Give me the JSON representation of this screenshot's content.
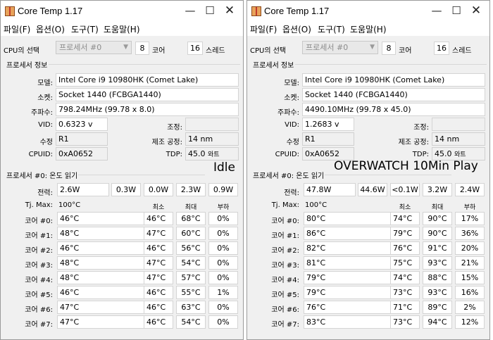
{
  "windows": [
    {
      "title": "Core Temp 1.17",
      "menu": [
        "파일(F)",
        "옵션(O)",
        "도구(T)",
        "도움말(H)"
      ],
      "cpu_select_label": "CPU의 선택",
      "cpu_select_value": "프로세서 #0",
      "cores_count": "8",
      "cores_label": "코어",
      "threads_count": "16",
      "threads_label": "스레드",
      "info_group": "프로세서 정보",
      "model_label": "모델:",
      "model": "Intel Core i9 10980HK (Comet Lake)",
      "socket_label": "소켓:",
      "socket": "Socket 1440 (FCBGA1440)",
      "freq_label": "주파수:",
      "freq": "798.24MHz (99.78 x 8.0)",
      "vid_label": "VID:",
      "vid": "0.6323 v",
      "mod_label": "조정:",
      "rev_label": "수정",
      "rev": "R1",
      "lith_label": "제조 공정:",
      "lith": "14 nm",
      "cpuid_label": "CPUID:",
      "cpuid": "0xA0652",
      "tdp_label": "TDP:",
      "tdp": "45.0",
      "tdp_unit": "와트",
      "temp_group": "프로세서 #0: 온도 읽기",
      "power_label": "전력:",
      "power": [
        "2.6W",
        "0.3W",
        "0.0W",
        "2.3W",
        "0.9W"
      ],
      "tjmax_label": "Tj. Max:",
      "tjmax": "100°C",
      "min_label": "최소",
      "max_label": "최대",
      "load_label": "부하",
      "cores": [
        {
          "label": "코어 #0:",
          "temp": "46°C",
          "min": "46°C",
          "max": "68°C",
          "load": "0%"
        },
        {
          "label": "코어 #1:",
          "temp": "48°C",
          "min": "47°C",
          "max": "60°C",
          "load": "0%"
        },
        {
          "label": "코어 #2:",
          "temp": "46°C",
          "min": "46°C",
          "max": "56°C",
          "load": "0%"
        },
        {
          "label": "코어 #3:",
          "temp": "48°C",
          "min": "47°C",
          "max": "54°C",
          "load": "0%"
        },
        {
          "label": "코어 #4:",
          "temp": "48°C",
          "min": "47°C",
          "max": "57°C",
          "load": "0%"
        },
        {
          "label": "코어 #5:",
          "temp": "46°C",
          "min": "46°C",
          "max": "55°C",
          "load": "1%"
        },
        {
          "label": "코어 #6:",
          "temp": "47°C",
          "min": "46°C",
          "max": "63°C",
          "load": "0%"
        },
        {
          "label": "코어 #7:",
          "temp": "47°C",
          "min": "46°C",
          "max": "54°C",
          "load": "0%"
        }
      ]
    },
    {
      "title": "Core Temp 1.17",
      "menu": [
        "파일(F)",
        "옵션(O)",
        "도구(T)",
        "도움말(H)"
      ],
      "cpu_select_label": "CPU의 선택",
      "cpu_select_value": "프로세서 #0",
      "cores_count": "8",
      "cores_label": "코어",
      "threads_count": "16",
      "threads_label": "스레드",
      "info_group": "프로세서 정보",
      "model_label": "모델:",
      "model": "Intel Core i9 10980HK (Comet Lake)",
      "socket_label": "소켓:",
      "socket": "Socket 1440 (FCBGA1440)",
      "freq_label": "주파수:",
      "freq": "4490.10MHz (99.78 x 45.0)",
      "vid_label": "VID:",
      "vid": "1.2683 v",
      "mod_label": "조정:",
      "rev_label": "수정",
      "rev": "R1",
      "lith_label": "제조 공정:",
      "lith": "14 nm",
      "cpuid_label": "CPUID:",
      "cpuid": "0xA0652",
      "tdp_label": "TDP:",
      "tdp": "45.0",
      "tdp_unit": "와트",
      "temp_group": "프로세서 #0: 온도 읽기",
      "power_label": "전력:",
      "power": [
        "47.8W",
        "44.6W",
        "<0.1W",
        "3.2W",
        "2.4W"
      ],
      "tjmax_label": "Tj. Max:",
      "tjmax": "100°C",
      "min_label": "최소",
      "max_label": "최대",
      "load_label": "부하",
      "cores": [
        {
          "label": "코어 #0:",
          "temp": "80°C",
          "min": "74°C",
          "max": "90°C",
          "load": "17%"
        },
        {
          "label": "코어 #1:",
          "temp": "86°C",
          "min": "79°C",
          "max": "90°C",
          "load": "36%"
        },
        {
          "label": "코어 #2:",
          "temp": "82°C",
          "min": "76°C",
          "max": "91°C",
          "load": "20%"
        },
        {
          "label": "코어 #3:",
          "temp": "81°C",
          "min": "75°C",
          "max": "93°C",
          "load": "21%"
        },
        {
          "label": "코어 #4:",
          "temp": "79°C",
          "min": "74°C",
          "max": "88°C",
          "load": "15%"
        },
        {
          "label": "코어 #5:",
          "temp": "79°C",
          "min": "73°C",
          "max": "93°C",
          "load": "16%"
        },
        {
          "label": "코어 #6:",
          "temp": "76°C",
          "min": "71°C",
          "max": "89°C",
          "load": "2%"
        },
        {
          "label": "코어 #7:",
          "temp": "83°C",
          "min": "73°C",
          "max": "94°C",
          "load": "12%"
        }
      ]
    }
  ],
  "overlays": {
    "left": "Idle",
    "right": "OVERWATCH 10Min Play"
  }
}
